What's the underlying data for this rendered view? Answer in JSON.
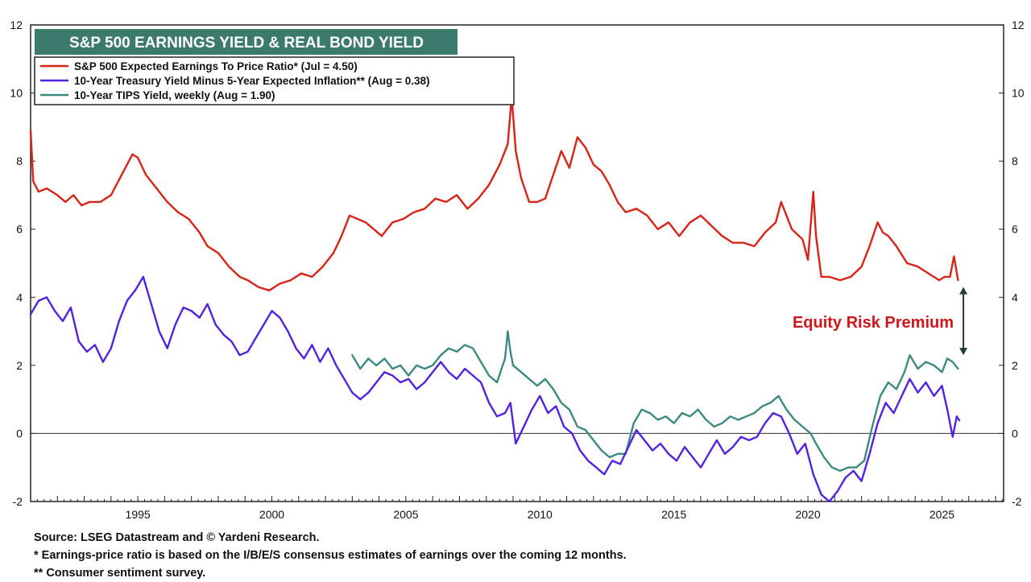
{
  "chart_data": {
    "type": "line",
    "title": "S&P 500 EARNINGS YIELD &  REAL BOND YIELD",
    "xlim": [
      1991.0,
      2027.3
    ],
    "ylim": [
      -2,
      12
    ],
    "y_ticks": [
      -2,
      0,
      2,
      4,
      6,
      8,
      10,
      12
    ],
    "x_ticks": [
      1995,
      2000,
      2005,
      2010,
      2015,
      2020,
      2025
    ],
    "minor_x_ticks_per_year": 4,
    "zero_line": true,
    "legend_position": "top-left",
    "annotation": {
      "text": "Equity Risk Premium",
      "color": "#d0161c",
      "arrow_x": 2025.8,
      "arrow_from": 4.3,
      "arrow_to": 2.3
    },
    "series": [
      {
        "name": "S&P 500 Expected Earnings To Price Ratio* (Jul = 4.50)",
        "color": "#d62418",
        "x": [
          1991.0,
          1991.1,
          1991.3,
          1991.6,
          1992.0,
          1992.3,
          1992.6,
          1992.9,
          1993.2,
          1993.6,
          1994.0,
          1994.4,
          1994.8,
          1995.0,
          1995.3,
          1995.7,
          1996.1,
          1996.5,
          1996.9,
          1997.3,
          1997.6,
          1998.0,
          1998.4,
          1998.8,
          1999.1,
          1999.5,
          1999.9,
          2000.3,
          2000.7,
          2001.1,
          2001.5,
          2001.9,
          2002.3,
          2002.6,
          2002.9,
          2003.2,
          2003.5,
          2003.8,
          2004.1,
          2004.5,
          2004.9,
          2005.3,
          2005.7,
          2006.1,
          2006.5,
          2006.9,
          2007.3,
          2007.7,
          2008.1,
          2008.5,
          2008.8,
          2008.95,
          2009.1,
          2009.3,
          2009.6,
          2009.9,
          2010.2,
          2010.5,
          2010.8,
          2011.1,
          2011.4,
          2011.7,
          2012.0,
          2012.3,
          2012.6,
          2012.9,
          2013.2,
          2013.6,
          2014.0,
          2014.4,
          2014.8,
          2015.2,
          2015.6,
          2016.0,
          2016.4,
          2016.8,
          2017.2,
          2017.6,
          2018.0,
          2018.4,
          2018.8,
          2019.0,
          2019.4,
          2019.8,
          2020.0,
          2020.2,
          2020.3,
          2020.5,
          2020.8,
          2021.2,
          2021.6,
          2022.0,
          2022.3,
          2022.6,
          2022.8,
          2023.0,
          2023.3,
          2023.7,
          2024.1,
          2024.5,
          2024.9,
          2025.1,
          2025.3,
          2025.45,
          2025.6
        ],
        "values": [
          8.9,
          7.4,
          7.1,
          7.2,
          7.0,
          6.8,
          7.0,
          6.7,
          6.8,
          6.8,
          7.0,
          7.6,
          8.2,
          8.1,
          7.6,
          7.2,
          6.8,
          6.5,
          6.3,
          5.9,
          5.5,
          5.3,
          4.9,
          4.6,
          4.5,
          4.3,
          4.2,
          4.4,
          4.5,
          4.7,
          4.6,
          4.9,
          5.3,
          5.8,
          6.4,
          6.3,
          6.2,
          6.0,
          5.8,
          6.2,
          6.3,
          6.5,
          6.6,
          6.9,
          6.8,
          7.0,
          6.6,
          6.9,
          7.3,
          7.9,
          8.5,
          9.9,
          8.3,
          7.5,
          6.8,
          6.8,
          6.9,
          7.6,
          8.3,
          7.8,
          8.7,
          8.4,
          7.9,
          7.7,
          7.3,
          6.8,
          6.5,
          6.6,
          6.4,
          6.0,
          6.2,
          5.8,
          6.2,
          6.4,
          6.1,
          5.8,
          5.6,
          5.6,
          5.5,
          5.9,
          6.2,
          6.8,
          6.0,
          5.7,
          5.1,
          7.1,
          5.8,
          4.6,
          4.6,
          4.5,
          4.6,
          4.9,
          5.5,
          6.2,
          5.9,
          5.8,
          5.5,
          5.0,
          4.9,
          4.7,
          4.5,
          4.6,
          4.6,
          5.2,
          4.5
        ]
      },
      {
        "name": "10-Year Treasury Yield Minus 5-Year Expected Inflation** (Aug = 0.38)",
        "color": "#5222e0",
        "x": [
          1991.0,
          1991.3,
          1991.6,
          1991.9,
          1992.2,
          1992.5,
          1992.8,
          1993.1,
          1993.4,
          1993.7,
          1994.0,
          1994.3,
          1994.6,
          1994.9,
          1995.2,
          1995.5,
          1995.8,
          1996.1,
          1996.4,
          1996.7,
          1997.0,
          1997.3,
          1997.6,
          1997.9,
          1998.2,
          1998.5,
          1998.8,
          1999.1,
          1999.4,
          1999.7,
          2000.0,
          2000.3,
          2000.6,
          2000.9,
          2001.2,
          2001.5,
          2001.8,
          2002.1,
          2002.4,
          2002.7,
          2003.0,
          2003.3,
          2003.6,
          2003.9,
          2004.2,
          2004.5,
          2004.8,
          2005.1,
          2005.4,
          2005.7,
          2006.0,
          2006.3,
          2006.6,
          2006.9,
          2007.2,
          2007.5,
          2007.8,
          2008.1,
          2008.4,
          2008.7,
          2008.9,
          2009.1,
          2009.4,
          2009.7,
          2010.0,
          2010.3,
          2010.6,
          2010.9,
          2011.2,
          2011.5,
          2011.8,
          2012.1,
          2012.4,
          2012.7,
          2013.0,
          2013.3,
          2013.6,
          2013.9,
          2014.2,
          2014.5,
          2014.8,
          2015.1,
          2015.4,
          2015.7,
          2016.0,
          2016.3,
          2016.6,
          2016.9,
          2017.2,
          2017.5,
          2017.8,
          2018.1,
          2018.4,
          2018.7,
          2019.0,
          2019.3,
          2019.6,
          2019.9,
          2020.2,
          2020.5,
          2020.8,
          2021.1,
          2021.4,
          2021.7,
          2022.0,
          2022.3,
          2022.6,
          2022.9,
          2023.2,
          2023.5,
          2023.8,
          2024.1,
          2024.4,
          2024.7,
          2025.0,
          2025.2,
          2025.4,
          2025.55,
          2025.65
        ],
        "values": [
          3.5,
          3.9,
          4.0,
          3.6,
          3.3,
          3.7,
          2.7,
          2.4,
          2.6,
          2.1,
          2.5,
          3.3,
          3.9,
          4.2,
          4.6,
          3.8,
          3.0,
          2.5,
          3.2,
          3.7,
          3.6,
          3.4,
          3.8,
          3.2,
          2.9,
          2.7,
          2.3,
          2.4,
          2.8,
          3.2,
          3.6,
          3.4,
          3.0,
          2.5,
          2.2,
          2.6,
          2.1,
          2.5,
          2.0,
          1.6,
          1.2,
          1.0,
          1.2,
          1.5,
          1.8,
          1.7,
          1.5,
          1.6,
          1.3,
          1.5,
          1.8,
          2.1,
          1.8,
          1.6,
          1.9,
          1.7,
          1.5,
          0.9,
          0.5,
          0.6,
          0.9,
          -0.3,
          0.2,
          0.7,
          1.1,
          0.6,
          0.8,
          0.2,
          0.0,
          -0.5,
          -0.8,
          -1.0,
          -1.2,
          -0.8,
          -0.9,
          -0.4,
          0.1,
          -0.2,
          -0.5,
          -0.3,
          -0.6,
          -0.8,
          -0.4,
          -0.7,
          -1.0,
          -0.6,
          -0.2,
          -0.6,
          -0.4,
          -0.1,
          -0.2,
          -0.1,
          0.3,
          0.6,
          0.5,
          0.0,
          -0.6,
          -0.3,
          -1.2,
          -1.8,
          -2.0,
          -1.7,
          -1.3,
          -1.1,
          -1.4,
          -0.6,
          0.3,
          0.9,
          0.6,
          1.1,
          1.6,
          1.2,
          1.5,
          1.1,
          1.4,
          0.7,
          -0.1,
          0.5,
          0.38
        ]
      },
      {
        "name": "10-Year TIPS Yield, weekly (Aug = 1.90)",
        "color": "#3d8a80",
        "x": [
          2003.0,
          2003.3,
          2003.6,
          2003.9,
          2004.2,
          2004.5,
          2004.8,
          2005.1,
          2005.4,
          2005.7,
          2006.0,
          2006.3,
          2006.6,
          2006.9,
          2007.2,
          2007.5,
          2007.8,
          2008.1,
          2008.4,
          2008.7,
          2008.8,
          2008.9,
          2009.0,
          2009.3,
          2009.6,
          2009.9,
          2010.2,
          2010.5,
          2010.8,
          2011.1,
          2011.4,
          2011.7,
          2012.0,
          2012.3,
          2012.6,
          2012.9,
          2013.2,
          2013.5,
          2013.8,
          2014.1,
          2014.4,
          2014.7,
          2015.0,
          2015.3,
          2015.6,
          2015.9,
          2016.2,
          2016.5,
          2016.8,
          2017.1,
          2017.4,
          2017.7,
          2018.0,
          2018.3,
          2018.6,
          2018.9,
          2019.2,
          2019.5,
          2019.8,
          2020.1,
          2020.3,
          2020.6,
          2020.9,
          2021.2,
          2021.5,
          2021.8,
          2022.1,
          2022.4,
          2022.7,
          2023.0,
          2023.3,
          2023.6,
          2023.8,
          2024.1,
          2024.4,
          2024.7,
          2025.0,
          2025.2,
          2025.4,
          2025.6
        ],
        "values": [
          2.3,
          1.9,
          2.2,
          2.0,
          2.2,
          1.9,
          2.0,
          1.7,
          2.0,
          1.9,
          2.0,
          2.3,
          2.5,
          2.4,
          2.6,
          2.5,
          2.1,
          1.7,
          1.5,
          2.2,
          3.0,
          2.4,
          2.0,
          1.8,
          1.6,
          1.4,
          1.6,
          1.3,
          0.9,
          0.7,
          0.2,
          0.1,
          -0.2,
          -0.5,
          -0.7,
          -0.6,
          -0.6,
          0.3,
          0.7,
          0.6,
          0.4,
          0.5,
          0.3,
          0.6,
          0.5,
          0.7,
          0.4,
          0.2,
          0.3,
          0.5,
          0.4,
          0.5,
          0.6,
          0.8,
          0.9,
          1.1,
          0.7,
          0.4,
          0.2,
          0.0,
          -0.3,
          -0.7,
          -1.0,
          -1.1,
          -1.0,
          -1.0,
          -0.8,
          0.2,
          1.1,
          1.5,
          1.3,
          1.8,
          2.3,
          1.9,
          2.1,
          2.0,
          1.8,
          2.2,
          2.1,
          1.9
        ]
      }
    ]
  },
  "footnotes": [
    "Source: LSEG Datastream and © Yardeni Research.",
    "* Earnings-price ratio is based on the I/B/E/S consensus estimates of earnings over the coming 12 months.",
    "** Consumer sentiment survey."
  ]
}
